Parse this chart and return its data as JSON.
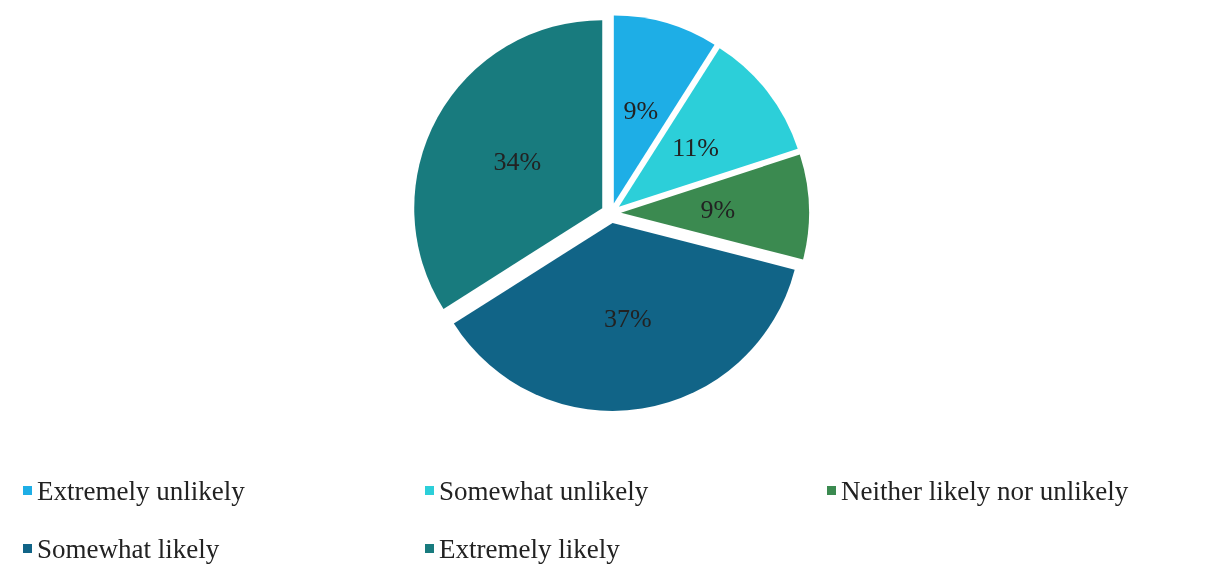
{
  "chart_data": {
    "type": "pie",
    "categories": [
      "Extremely unlikely",
      "Somewhat unlikely",
      "Neither likely nor unlikely",
      "Somewhat likely",
      "Extremely likely"
    ],
    "values": [
      9,
      11,
      9,
      37,
      34
    ],
    "colors": [
      "#1eaee6",
      "#2ccfd9",
      "#3b8a50",
      "#116487",
      "#187b7e"
    ],
    "value_labels": [
      "9%",
      "11%",
      "9%",
      "37%",
      "34%"
    ],
    "legend": "bottom"
  }
}
